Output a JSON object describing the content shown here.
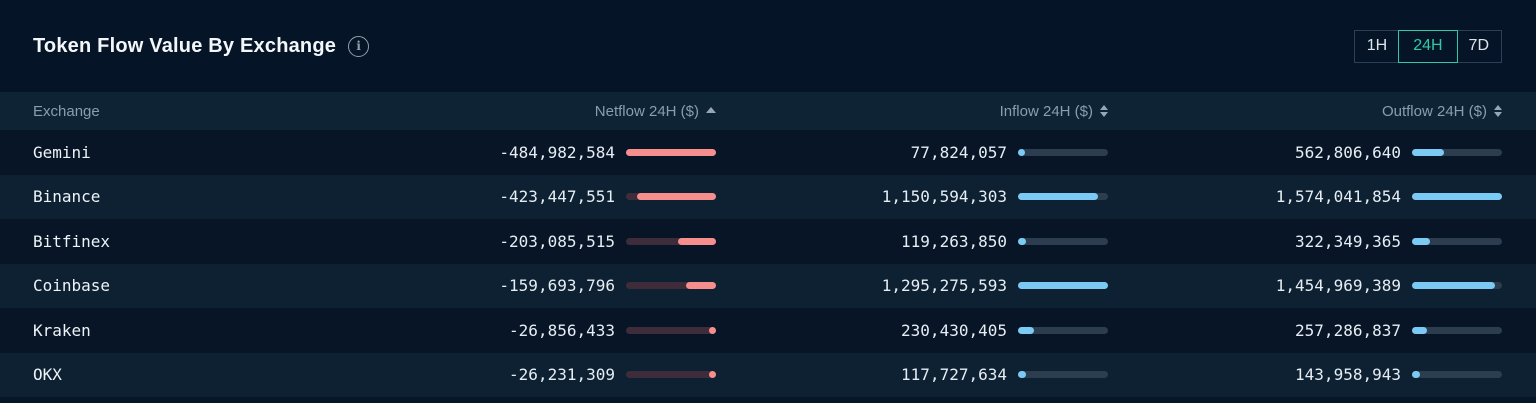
{
  "header": {
    "title": "Token Flow Value By Exchange",
    "info_glyph": "i",
    "time_ranges": [
      {
        "label": "1H",
        "active": false
      },
      {
        "label": "24H",
        "active": true
      },
      {
        "label": "7D",
        "active": false
      }
    ]
  },
  "colors": {
    "accent_teal": "#30c8a5",
    "netflow_fill": "#f68e8e",
    "netflow_track": "#3f2c3b",
    "flow_fill": "#7bcaf3",
    "flow_track": "#2b3d4f",
    "row_odd": "#071526",
    "row_even": "#0d2132",
    "header_bg": "#0e2435",
    "page_bg": "#051527"
  },
  "table": {
    "columns": {
      "exchange": {
        "label": "Exchange",
        "sort": "none"
      },
      "netflow": {
        "label": "Netflow 24H ($)",
        "sort": "asc"
      },
      "inflow": {
        "label": "Inflow 24H ($)",
        "sort": "sortable"
      },
      "outflow": {
        "label": "Outflow 24H ($)",
        "sort": "sortable"
      }
    },
    "rows": [
      {
        "name": "Gemini",
        "netflow": "-484,982,584",
        "netflow_pct": 100,
        "inflow": "77,824,057",
        "inflow_pct": 6.0,
        "outflow": "562,806,640",
        "outflow_pct": 35.8
      },
      {
        "name": "Binance",
        "netflow": "-423,447,551",
        "netflow_pct": 87.3,
        "inflow": "1,150,594,303",
        "inflow_pct": 88.8,
        "outflow": "1,574,041,854",
        "outflow_pct": 100
      },
      {
        "name": "Bitfinex",
        "netflow": "-203,085,515",
        "netflow_pct": 41.9,
        "inflow": "119,263,850",
        "inflow_pct": 9.2,
        "outflow": "322,349,365",
        "outflow_pct": 20.5
      },
      {
        "name": "Coinbase",
        "netflow": "-159,693,796",
        "netflow_pct": 32.9,
        "inflow": "1,295,275,593",
        "inflow_pct": 100,
        "outflow": "1,454,969,389",
        "outflow_pct": 92.4
      },
      {
        "name": "Kraken",
        "netflow": "-26,856,433",
        "netflow_pct": 5.5,
        "inflow": "230,430,405",
        "inflow_pct": 17.8,
        "outflow": "257,286,837",
        "outflow_pct": 16.3
      },
      {
        "name": "OKX",
        "netflow": "-26,231,309",
        "netflow_pct": 5.4,
        "inflow": "117,727,634",
        "inflow_pct": 9.1,
        "outflow": "143,958,943",
        "outflow_pct": 9.1
      }
    ]
  }
}
